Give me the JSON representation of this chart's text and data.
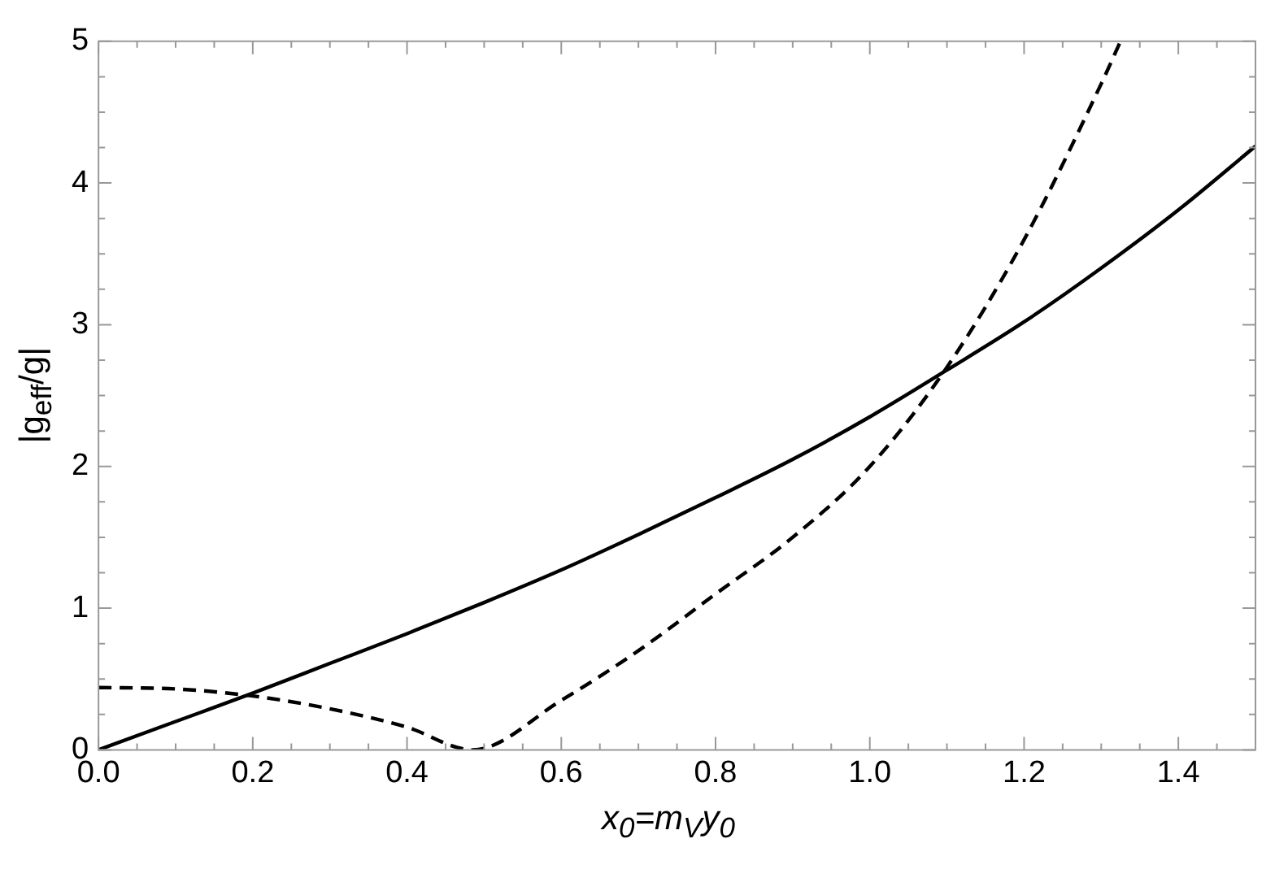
{
  "chart_data": {
    "type": "line",
    "xlabel": "x$_{0}$=m$_{V}$y$_{0}$",
    "ylabel": "|g$_{eff}$/g|",
    "xlim": [
      0,
      1.5
    ],
    "ylim": [
      0,
      5
    ],
    "xticks": [
      {
        "value": 0,
        "label": "0.0"
      },
      {
        "value": 0.2,
        "label": "0.2"
      },
      {
        "value": 0.4,
        "label": "0.4"
      },
      {
        "value": 0.6,
        "label": "0.6"
      },
      {
        "value": 0.8,
        "label": "0.8"
      },
      {
        "value": 1,
        "label": "1.0"
      },
      {
        "value": 1.2,
        "label": "1.2"
      },
      {
        "value": 1.4,
        "label": "1.4"
      }
    ],
    "yticks": [
      0,
      1,
      2,
      3,
      4,
      5
    ],
    "grid": false,
    "legend": false,
    "marker": "none",
    "series": [
      {
        "color": "#000000",
        "line_style": "solid",
        "x": [
          0,
          0.1,
          0.2,
          0.3,
          0.4,
          0.5,
          0.6,
          0.7,
          0.8,
          0.9,
          1.0,
          1.1,
          1.2,
          1.3,
          1.4,
          1.5
        ],
        "values": [
          0,
          0.2,
          0.4,
          0.61,
          0.82,
          1.04,
          1.27,
          1.52,
          1.78,
          2.05,
          2.35,
          2.68,
          3.02,
          3.4,
          3.81,
          4.26
        ]
      },
      {
        "color": "#000000",
        "line_style": "dashed",
        "x": [
          0,
          0.1,
          0.2,
          0.3,
          0.4,
          0.485,
          0.6,
          0.7,
          0.8,
          0.9,
          1.0,
          1.1,
          1.2,
          1.3,
          1.325
        ],
        "values": [
          0.44,
          0.43,
          0.38,
          0.29,
          0.16,
          0,
          0.35,
          0.7,
          1.1,
          1.5,
          2.0,
          2.7,
          3.6,
          4.7,
          5.0
        ]
      }
    ]
  }
}
